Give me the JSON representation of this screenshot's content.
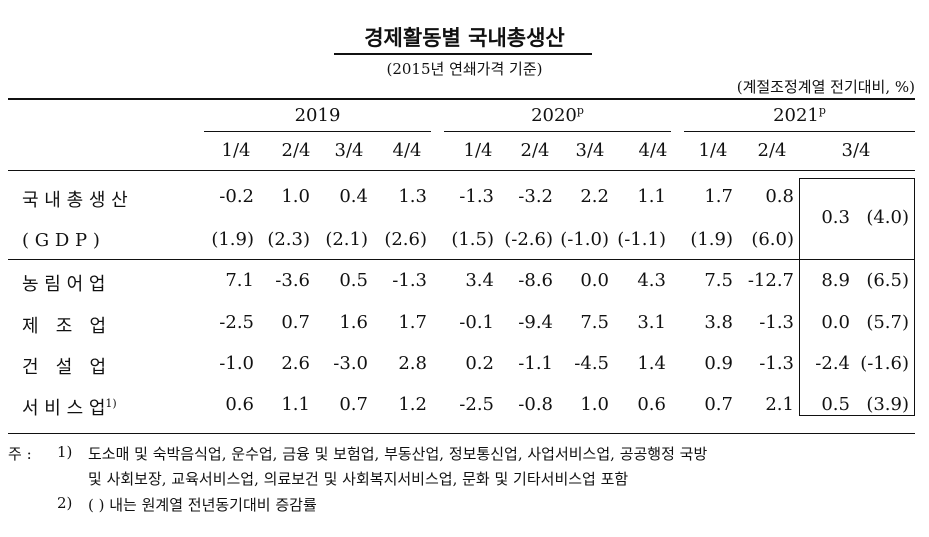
{
  "title": "경제활동별 국내총생산",
  "subtitle": "(2015년 연쇄가격 기준)",
  "unit": "(계절조정계열 전기대비, %)",
  "years": [
    {
      "label": "2019",
      "sup": ""
    },
    {
      "label": "2020",
      "sup": "p"
    },
    {
      "label": "2021",
      "sup": "p"
    }
  ],
  "quarters": [
    "1/4",
    "2/4",
    "3/4",
    "4/4",
    "1/4",
    "2/4",
    "3/4",
    "4/4",
    "1/4",
    "2/4",
    "3/4"
  ],
  "rows": [
    {
      "label": "국 내 총 생 산",
      "sup": "",
      "values": [
        "-0.2",
        "1.0",
        "0.4",
        "1.3",
        "-1.3",
        "-3.2",
        "2.2",
        "1.1",
        "1.7",
        "0.8",
        "0.3",
        "(4.0)"
      ]
    },
    {
      "label": "( G D P )",
      "sup": "",
      "values": [
        "(1.9)",
        "(2.3)",
        "(2.1)",
        "(2.6)",
        "(1.5)",
        "(-2.6)",
        "(-1.0)",
        "(-1.1)",
        "(1.9)",
        "(6.0)",
        "",
        ""
      ]
    },
    {
      "label": "농 림 어 업",
      "sup": "",
      "values": [
        "7.1",
        "-3.6",
        "0.5",
        "-1.3",
        "3.4",
        "-8.6",
        "0.0",
        "4.3",
        "7.5",
        "-12.7",
        "8.9",
        "(6.5)"
      ]
    },
    {
      "label": "제   조   업",
      "sup": "",
      "values": [
        "-2.5",
        "0.7",
        "1.6",
        "1.7",
        "-0.1",
        "-9.4",
        "7.5",
        "3.1",
        "3.8",
        "-1.3",
        "0.0",
        "(5.7)"
      ]
    },
    {
      "label": "건   설   업",
      "sup": "",
      "values": [
        "-1.0",
        "2.6",
        "-3.0",
        "2.8",
        "0.2",
        "-1.1",
        "-4.5",
        "1.4",
        "0.9",
        "-1.3",
        "-2.4",
        "(-1.6)"
      ]
    },
    {
      "label": "서 비 스 업",
      "sup": "1)",
      "values": [
        "0.6",
        "1.1",
        "0.7",
        "1.2",
        "-2.5",
        "-0.8",
        "1.0",
        "0.6",
        "0.7",
        "2.1",
        "0.5",
        "(3.9)"
      ]
    }
  ],
  "notes": {
    "prefix": "주 :",
    "n1_num": "1)",
    "n1_line1": "도소매 및 숙박음식업, 운수업, 금융 및 보험업, 부동산업, 정보통신업, 사업서비스업, 공공행정 국방",
    "n1_line2": "및 사회보장, 교육서비스업, 의료보건 및 사회복지서비스업, 문화 및 기타서비스업 포함",
    "n2_num": "2)",
    "n2_text": "(  ) 내는 원계열 전년동기대비 증감률"
  }
}
